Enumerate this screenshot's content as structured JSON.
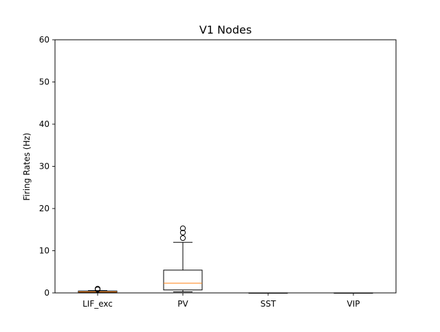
{
  "chart_data": {
    "type": "box",
    "title": "V1 Nodes",
    "xlabel": "",
    "ylabel": "Firing Rates (Hz)",
    "ylim": [
      0,
      60
    ],
    "yticks": [
      0,
      10,
      20,
      30,
      40,
      50,
      60
    ],
    "categories": [
      "LIF_exc",
      "PV",
      "SST",
      "VIP"
    ],
    "grid": false,
    "legend": "none",
    "colors": {
      "box": "#000000",
      "median": "#ff7f0e",
      "flier": "#000000"
    },
    "boxes": [
      {
        "category": "LIF_exc",
        "whisker_low": 0.0,
        "q1": 0.1,
        "median": 0.25,
        "q3": 0.45,
        "whisker_high": 0.55,
        "fliers": [
          0.8,
          1.0
        ]
      },
      {
        "category": "PV",
        "whisker_low": 0.25,
        "q1": 0.7,
        "median": 2.3,
        "q3": 5.4,
        "whisker_high": 12.0,
        "fliers": [
          13.0,
          14.3,
          15.3
        ]
      },
      {
        "category": "SST",
        "whisker_low": 0,
        "q1": 0,
        "median": 0,
        "q3": 0,
        "whisker_high": 0,
        "fliers": []
      },
      {
        "category": "VIP",
        "whisker_low": 0,
        "q1": 0,
        "median": 0,
        "q3": 0,
        "whisker_high": 0,
        "fliers": []
      }
    ]
  }
}
